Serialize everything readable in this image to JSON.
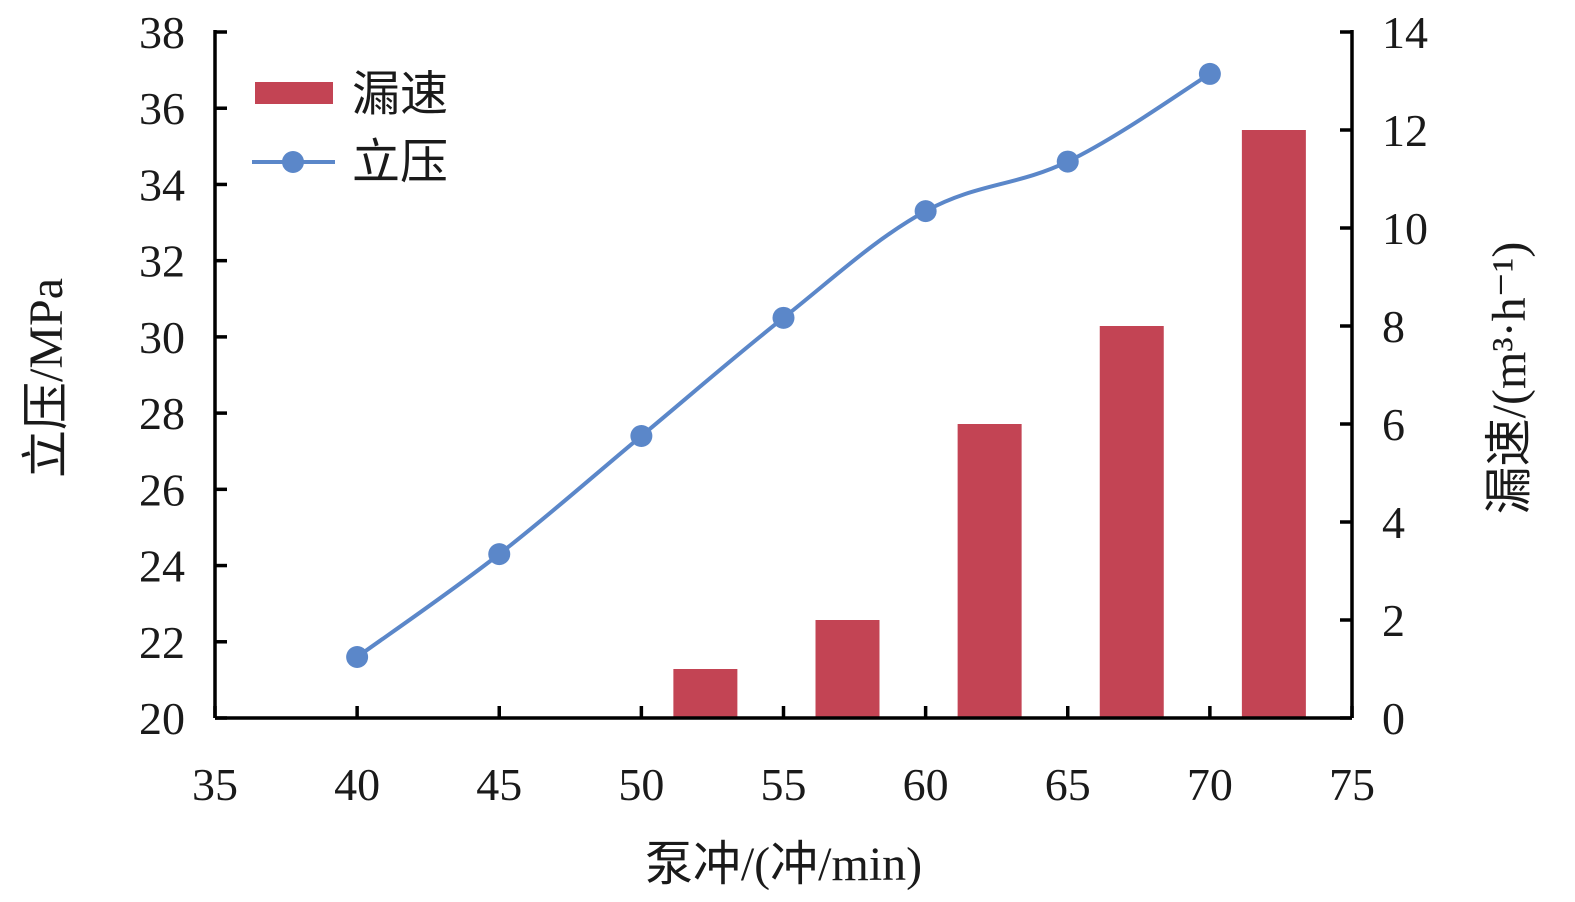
{
  "chart_data": {
    "type": "bar",
    "x": [
      40,
      45,
      50,
      55,
      60,
      65,
      70
    ],
    "xlabel": "泵冲/(冲/min)",
    "xlim": [
      35,
      75
    ],
    "xticks": [
      35,
      40,
      45,
      50,
      55,
      60,
      65,
      70,
      75
    ],
    "ylabel_left": "立压/MPa",
    "ylim_left": [
      20,
      38
    ],
    "yticks_left": [
      20,
      22,
      24,
      26,
      28,
      30,
      32,
      34,
      36,
      38
    ],
    "ylabel_right": "漏速/(m³·h⁻¹)",
    "ylim_right": [
      0,
      14
    ],
    "yticks_right": [
      0,
      2,
      4,
      6,
      8,
      10,
      12,
      14
    ],
    "legend_position": "top-left",
    "series": [
      {
        "name": "漏速",
        "type": "bar",
        "axis": "right",
        "color": "#C34454",
        "x": [
          40,
          45,
          50,
          55,
          60,
          65,
          70
        ],
        "values": [
          0,
          0,
          1,
          2,
          6,
          8,
          12
        ]
      },
      {
        "name": "立压",
        "type": "line",
        "axis": "left",
        "color": "#5B87C9",
        "x": [
          40,
          45,
          50,
          55,
          60,
          65,
          70
        ],
        "values": [
          21.6,
          24.3,
          27.4,
          30.5,
          33.3,
          34.6,
          36.9
        ]
      }
    ]
  }
}
